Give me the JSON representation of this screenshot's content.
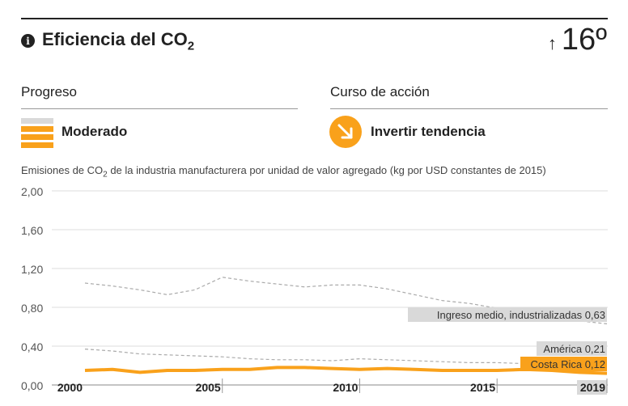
{
  "header": {
    "title_main": "Eficiencia del CO",
    "title_sub": "2",
    "rank_arrow": "↑",
    "rank_value": "16º"
  },
  "progress": {
    "heading": "Progreso",
    "status": "Moderado"
  },
  "action": {
    "heading": "Curso de acción",
    "status": "Invertir tendencia"
  },
  "colors": {
    "accent": "#f9a11b",
    "progress_inactive": "#d9d9d9",
    "reference_line": "#aaaaaa",
    "label_bg": "#d9d9d9"
  },
  "chart_caption": {
    "before": "Emisiones de CO",
    "sub": "2",
    "after": " de la industria manufacturera por unidad de valor agregado (kg por USD constantes de 2015)"
  },
  "chart_data": {
    "type": "line",
    "x": [
      2000,
      2001,
      2002,
      2003,
      2004,
      2005,
      2006,
      2007,
      2008,
      2009,
      2010,
      2011,
      2012,
      2013,
      2014,
      2015,
      2016,
      2017,
      2018,
      2019
    ],
    "ylim": [
      0,
      2.0
    ],
    "yticks": [
      "0,00",
      "0,40",
      "0,80",
      "1,20",
      "1,60",
      "2,00"
    ],
    "ytick_values": [
      0,
      0.4,
      0.8,
      1.2,
      1.6,
      2.0
    ],
    "xticks": [
      2000,
      2005,
      2010,
      2015,
      2019
    ],
    "grid": true,
    "series": [
      {
        "label_name": "Ingreso medio, industrializadas",
        "label_value": "0,63",
        "style": "dashed",
        "values": [
          1.05,
          1.02,
          0.98,
          0.93,
          0.98,
          1.11,
          1.07,
          1.04,
          1.01,
          1.03,
          1.03,
          0.99,
          0.93,
          0.87,
          0.84,
          0.79,
          0.75,
          0.7,
          0.66,
          0.63
        ]
      },
      {
        "label_name": "América",
        "label_value": "0,21",
        "style": "dashed",
        "values": [
          0.37,
          0.35,
          0.32,
          0.31,
          0.3,
          0.29,
          0.27,
          0.26,
          0.26,
          0.25,
          0.27,
          0.26,
          0.25,
          0.24,
          0.23,
          0.23,
          0.22,
          0.22,
          0.21,
          0.21
        ]
      },
      {
        "label_name": "Costa Rica",
        "label_value": "0,12",
        "style": "solid",
        "values": [
          0.15,
          0.16,
          0.13,
          0.15,
          0.15,
          0.16,
          0.16,
          0.18,
          0.18,
          0.17,
          0.16,
          0.17,
          0.16,
          0.15,
          0.15,
          0.15,
          0.16,
          0.15,
          0.13,
          0.12
        ]
      }
    ]
  }
}
